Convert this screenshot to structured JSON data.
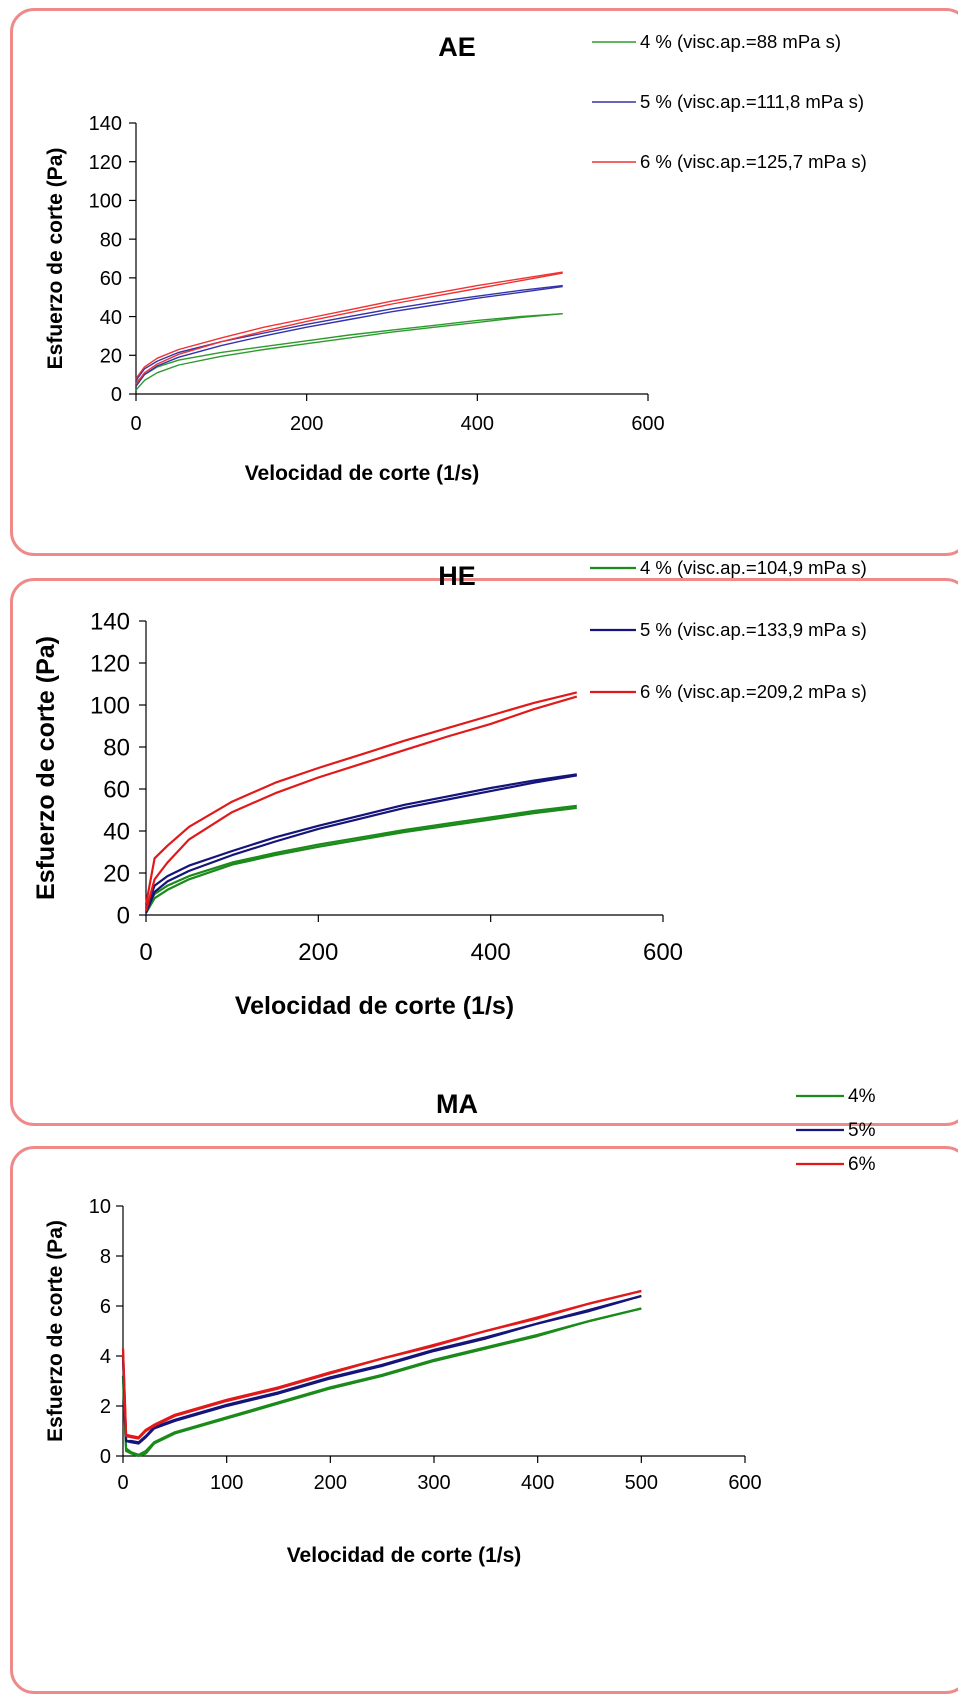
{
  "chart_data": [
    {
      "type": "line",
      "title": "AE",
      "xlabel": "Velocidad de corte (1/s)",
      "ylabel": "Esfuerzo de corte (Pa)",
      "xlim": [
        0,
        600
      ],
      "ylim": [
        0,
        140
      ],
      "xticks": [
        0,
        200,
        400,
        600
      ],
      "yticks": [
        0,
        20,
        40,
        60,
        80,
        100,
        120,
        140
      ],
      "grid": false,
      "legend": "top-right",
      "series": [
        {
          "name": "4 % (visc.ap.=88 mPa s)",
          "color": "#2e9a2e",
          "x": [
            0,
            10,
            25,
            50,
            100,
            150,
            200,
            250,
            300,
            350,
            400,
            450,
            500
          ],
          "y_up": [
            2,
            7,
            11,
            15,
            19.5,
            23,
            26,
            29,
            32,
            34.5,
            37,
            39.5,
            41.5
          ],
          "y_down": [
            6,
            10,
            14,
            17.5,
            21.5,
            24.5,
            27.5,
            30.5,
            33,
            35.5,
            38,
            40,
            41.5
          ]
        },
        {
          "name": "5 % (visc.ap.=111,8 mPa s)",
          "color": "#3333aa",
          "x": [
            0,
            10,
            25,
            50,
            100,
            150,
            200,
            250,
            300,
            350,
            400,
            450,
            500
          ],
          "y_up": [
            4,
            10,
            14.5,
            19,
            25,
            30,
            34.5,
            38.5,
            42.5,
            46,
            49.5,
            52.5,
            55.5
          ],
          "y_down": [
            7,
            13,
            17,
            21.5,
            27,
            31.5,
            36,
            40,
            44,
            47.5,
            50.5,
            53.5,
            56
          ]
        },
        {
          "name": "6 % (visc.ap.=125,7 mPa s)",
          "color": "#ee3333",
          "x": [
            0,
            10,
            25,
            50,
            100,
            150,
            200,
            250,
            300,
            350,
            400,
            450,
            500
          ],
          "y_up": [
            5,
            11,
            15.5,
            20.5,
            27,
            32.5,
            37.5,
            42,
            46.5,
            50.5,
            54.5,
            58.5,
            62.5
          ],
          "y_down": [
            8,
            14,
            18.5,
            23,
            29,
            34.5,
            39,
            43.5,
            48,
            52,
            56,
            59.5,
            63
          ]
        }
      ]
    },
    {
      "type": "line",
      "title": "HE",
      "xlabel": "Velocidad de corte (1/s)",
      "ylabel": "Esfuerzo de corte (Pa)",
      "xlim": [
        0,
        600
      ],
      "ylim": [
        0,
        140
      ],
      "xticks": [
        0,
        200,
        400,
        600
      ],
      "yticks": [
        0,
        20,
        40,
        60,
        80,
        100,
        120,
        140
      ],
      "grid": false,
      "legend": "top-right",
      "series": [
        {
          "name": "4 % (visc.ap.=104,9 mPa s)",
          "color": "#1a8a1a",
          "x": [
            0,
            10,
            25,
            50,
            100,
            150,
            200,
            250,
            300,
            350,
            400,
            450,
            500
          ],
          "y_up": [
            1,
            8,
            12,
            17,
            24,
            28.5,
            32.5,
            36,
            39.5,
            42.5,
            45.5,
            48.5,
            51
          ],
          "y_down": [
            3,
            10,
            14,
            18.5,
            25,
            29.5,
            33.5,
            37,
            40.5,
            43.5,
            46.5,
            49.5,
            52
          ]
        },
        {
          "name": "5 % (visc.ap.=133,9 mPa s)",
          "color": "#14147a",
          "x": [
            0,
            10,
            25,
            50,
            100,
            150,
            200,
            250,
            300,
            350,
            400,
            450,
            500
          ],
          "y_up": [
            1,
            11,
            16,
            21,
            28.5,
            35,
            41,
            46,
            51,
            55,
            59,
            63,
            66.5
          ],
          "y_down": [
            3,
            14,
            18.5,
            23.5,
            30.5,
            37,
            42.5,
            47.5,
            52.5,
            56.5,
            60.5,
            64,
            67
          ]
        },
        {
          "name": "6 % (visc.ap.=209,2 mPa s)",
          "color": "#e01a1a",
          "x": [
            0,
            10,
            25,
            50,
            100,
            150,
            200,
            250,
            300,
            350,
            400,
            450,
            500
          ],
          "y_up": [
            2,
            17,
            25,
            36,
            49,
            58,
            65.5,
            72,
            78.5,
            85,
            91,
            98,
            104
          ],
          "y_down": [
            5,
            27,
            33,
            42,
            54,
            63,
            70,
            76.5,
            83,
            89,
            95,
            101,
            106
          ]
        }
      ]
    },
    {
      "type": "line",
      "title": "MA",
      "xlabel": "Velocidad de corte (1/s)",
      "ylabel": "Esfuerzo de corte (Pa)",
      "xlim": [
        0,
        600
      ],
      "ylim": [
        0,
        10
      ],
      "xticks": [
        0,
        100,
        200,
        300,
        400,
        500,
        600
      ],
      "yticks": [
        0,
        2,
        4,
        6,
        8,
        10
      ],
      "grid": false,
      "legend": "top-right",
      "series": [
        {
          "name": "4%",
          "color": "#1a8a1a",
          "x": [
            0,
            3,
            8,
            15,
            22,
            30,
            50,
            100,
            150,
            200,
            250,
            300,
            350,
            400,
            450,
            500
          ],
          "y_up": [
            3.2,
            0.2,
            0.1,
            0,
            0.1,
            0.5,
            0.9,
            1.5,
            2.1,
            2.7,
            3.2,
            3.8,
            4.3,
            4.8,
            5.4,
            5.9
          ],
          "y_down": [
            3.2,
            0.3,
            0.15,
            0.05,
            0.2,
            0.55,
            0.95,
            1.55,
            2.15,
            2.75,
            3.25,
            3.85,
            4.35,
            4.85,
            5.4,
            5.9
          ]
        },
        {
          "name": "5%",
          "color": "#14147a",
          "x": [
            0,
            3,
            8,
            15,
            22,
            30,
            50,
            100,
            150,
            200,
            250,
            300,
            350,
            400,
            450,
            500
          ],
          "y_up": [
            4.0,
            0.6,
            0.55,
            0.5,
            0.75,
            1.1,
            1.4,
            2.0,
            2.5,
            3.1,
            3.6,
            4.2,
            4.7,
            5.3,
            5.8,
            6.4
          ],
          "y_down": [
            4.0,
            0.6,
            0.6,
            0.55,
            0.8,
            1.15,
            1.45,
            2.05,
            2.55,
            3.15,
            3.65,
            4.25,
            4.75,
            5.3,
            5.85,
            6.4
          ]
        },
        {
          "name": "6%",
          "color": "#e01a1a",
          "x": [
            0,
            3,
            8,
            15,
            22,
            30,
            50,
            100,
            150,
            200,
            250,
            300,
            350,
            400,
            450,
            500
          ],
          "y_up": [
            4.3,
            0.8,
            0.75,
            0.7,
            1.0,
            1.2,
            1.6,
            2.2,
            2.7,
            3.3,
            3.9,
            4.4,
            5.0,
            5.5,
            6.1,
            6.6
          ],
          "y_down": [
            4.3,
            0.85,
            0.8,
            0.75,
            1.05,
            1.25,
            1.65,
            2.25,
            2.75,
            3.35,
            3.9,
            4.45,
            5.0,
            5.55,
            6.1,
            6.6
          ]
        }
      ]
    }
  ]
}
